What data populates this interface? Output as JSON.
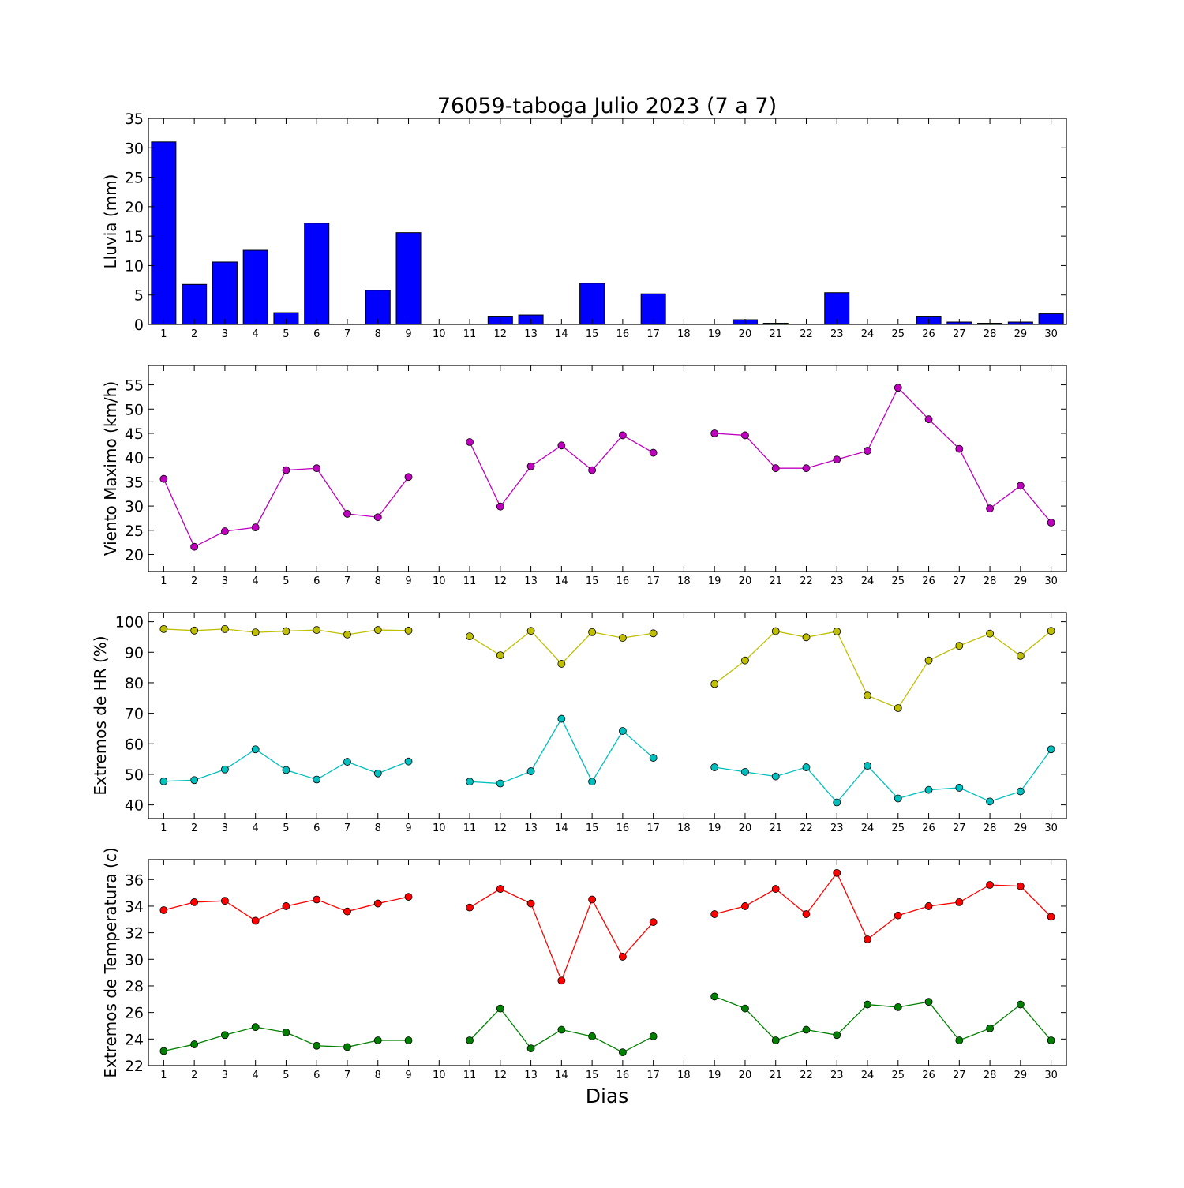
{
  "title": "76059-taboga Julio 2023  (7 a 7)",
  "xlabel": "Dias",
  "chart_data": [
    {
      "type": "bar",
      "ylabel": "Lluvia (mm)",
      "ylim": [
        0,
        35
      ],
      "yticks": [
        0,
        5,
        10,
        15,
        20,
        25,
        30,
        35
      ],
      "xlim": [
        0.5,
        30.5
      ],
      "xticks": [
        1,
        2,
        3,
        4,
        5,
        6,
        7,
        8,
        9,
        10,
        11,
        12,
        13,
        14,
        15,
        16,
        17,
        18,
        19,
        20,
        21,
        22,
        23,
        24,
        25,
        26,
        27,
        28,
        29,
        30
      ],
      "series": [
        {
          "x": [
            1,
            2,
            3,
            4,
            5,
            6,
            7,
            8,
            9,
            10,
            11,
            12,
            13,
            14,
            15,
            16,
            17,
            18,
            19,
            20,
            21,
            22,
            23,
            24,
            25,
            26,
            27,
            28,
            29,
            30
          ],
          "values": [
            31.0,
            6.8,
            10.6,
            12.6,
            2.0,
            17.2,
            0.0,
            5.8,
            15.6,
            0.0,
            0.0,
            1.4,
            1.6,
            0.0,
            7.0,
            0.0,
            5.2,
            0.0,
            0.0,
            0.8,
            0.2,
            0.0,
            5.4,
            0.0,
            0.0,
            1.4,
            0.4,
            0.2,
            0.4,
            1.8
          ],
          "color": "#0000ff"
        }
      ]
    },
    {
      "type": "line",
      "ylabel": "Viento Maximo (km/h)",
      "ylim": [
        16.5,
        59
      ],
      "yticks": [
        20,
        25,
        30,
        35,
        40,
        45,
        50,
        55
      ],
      "xlim": [
        0.5,
        30.5
      ],
      "xticks": [
        1,
        2,
        3,
        4,
        5,
        6,
        7,
        8,
        9,
        10,
        11,
        12,
        13,
        14,
        15,
        16,
        17,
        18,
        19,
        20,
        21,
        22,
        23,
        24,
        25,
        26,
        27,
        28,
        29,
        30
      ],
      "series": [
        {
          "x": [
            1,
            2,
            3,
            4,
            5,
            6,
            7,
            8,
            9,
            10,
            11,
            12,
            13,
            14,
            15,
            16,
            17,
            18,
            19,
            20,
            21,
            22,
            23,
            24,
            25,
            26,
            27,
            28,
            29,
            30
          ],
          "values": [
            35.6,
            21.6,
            24.8,
            25.6,
            37.4,
            37.8,
            28.4,
            27.7,
            36.0,
            null,
            43.2,
            29.9,
            38.2,
            42.5,
            37.4,
            44.6,
            41.0,
            null,
            45.0,
            44.6,
            37.8,
            37.8,
            39.6,
            41.4,
            54.4,
            47.9,
            41.8,
            29.5,
            34.2,
            26.6
          ],
          "color": "#bf00bf"
        }
      ]
    },
    {
      "type": "line",
      "ylabel": "Extremos de HR (%)",
      "ylim": [
        35.5,
        103
      ],
      "yticks": [
        40,
        50,
        60,
        70,
        80,
        90,
        100
      ],
      "xlim": [
        0.5,
        30.5
      ],
      "xticks": [
        1,
        2,
        3,
        4,
        5,
        6,
        7,
        8,
        9,
        10,
        11,
        12,
        13,
        14,
        15,
        16,
        17,
        18,
        19,
        20,
        21,
        22,
        23,
        24,
        25,
        26,
        27,
        28,
        29,
        30
      ],
      "series": [
        {
          "x": [
            1,
            2,
            3,
            4,
            5,
            6,
            7,
            8,
            9,
            10,
            11,
            12,
            13,
            14,
            15,
            16,
            17,
            18,
            19,
            20,
            21,
            22,
            23,
            24,
            25,
            26,
            27,
            28,
            29,
            30
          ],
          "values": [
            97.6,
            97.1,
            97.6,
            96.5,
            96.9,
            97.3,
            95.8,
            97.3,
            97.1,
            null,
            95.2,
            89.0,
            97.0,
            86.2,
            96.6,
            94.7,
            96.2,
            null,
            79.6,
            87.3,
            96.9,
            94.9,
            96.8,
            75.8,
            71.7,
            87.3,
            92.1,
            96.1,
            88.8,
            97.0
          ],
          "color": "#bfbf00"
        },
        {
          "x": [
            1,
            2,
            3,
            4,
            5,
            6,
            7,
            8,
            9,
            10,
            11,
            12,
            13,
            14,
            15,
            16,
            17,
            18,
            19,
            20,
            21,
            22,
            23,
            24,
            25,
            26,
            27,
            28,
            29,
            30
          ],
          "values": [
            47.7,
            48.1,
            51.6,
            58.2,
            51.4,
            48.3,
            54.1,
            50.3,
            54.2,
            null,
            47.6,
            47.0,
            51.0,
            68.2,
            47.6,
            64.2,
            55.4,
            null,
            52.3,
            50.8,
            49.3,
            52.3,
            40.8,
            52.8,
            42.1,
            44.9,
            45.6,
            41.1,
            44.4,
            58.2
          ],
          "color": "#00bfbf"
        }
      ]
    },
    {
      "type": "line",
      "ylabel": "Extremos de Temperatura (c)",
      "ylim": [
        22,
        37.5
      ],
      "yticks": [
        22,
        24,
        26,
        28,
        30,
        32,
        34,
        36
      ],
      "xlim": [
        0.5,
        30.5
      ],
      "xticks": [
        1,
        2,
        3,
        4,
        5,
        6,
        7,
        8,
        9,
        10,
        11,
        12,
        13,
        14,
        15,
        16,
        17,
        18,
        19,
        20,
        21,
        22,
        23,
        24,
        25,
        26,
        27,
        28,
        29,
        30
      ],
      "series": [
        {
          "x": [
            1,
            2,
            3,
            4,
            5,
            6,
            7,
            8,
            9,
            10,
            11,
            12,
            13,
            14,
            15,
            16,
            17,
            18,
            19,
            20,
            21,
            22,
            23,
            24,
            25,
            26,
            27,
            28,
            29,
            30
          ],
          "values": [
            33.7,
            34.3,
            34.4,
            32.9,
            34.0,
            34.5,
            33.6,
            34.2,
            34.7,
            null,
            33.9,
            35.3,
            34.2,
            28.4,
            34.5,
            30.2,
            32.8,
            null,
            33.4,
            34.0,
            35.3,
            33.4,
            36.5,
            31.5,
            33.3,
            34.0,
            34.3,
            35.6,
            35.5,
            33.2
          ],
          "color": "#ff0000"
        },
        {
          "x": [
            1,
            2,
            3,
            4,
            5,
            6,
            7,
            8,
            9,
            10,
            11,
            12,
            13,
            14,
            15,
            16,
            17,
            18,
            19,
            20,
            21,
            22,
            23,
            24,
            25,
            26,
            27,
            28,
            29,
            30
          ],
          "values": [
            23.1,
            23.6,
            24.3,
            24.9,
            24.5,
            23.5,
            23.4,
            23.9,
            23.9,
            null,
            23.9,
            26.3,
            23.3,
            24.7,
            24.2,
            23.0,
            24.2,
            null,
            27.2,
            26.3,
            23.9,
            24.7,
            24.3,
            26.6,
            26.4,
            26.8,
            23.9,
            24.8,
            26.6,
            23.9
          ],
          "color": "#008000"
        }
      ]
    }
  ]
}
